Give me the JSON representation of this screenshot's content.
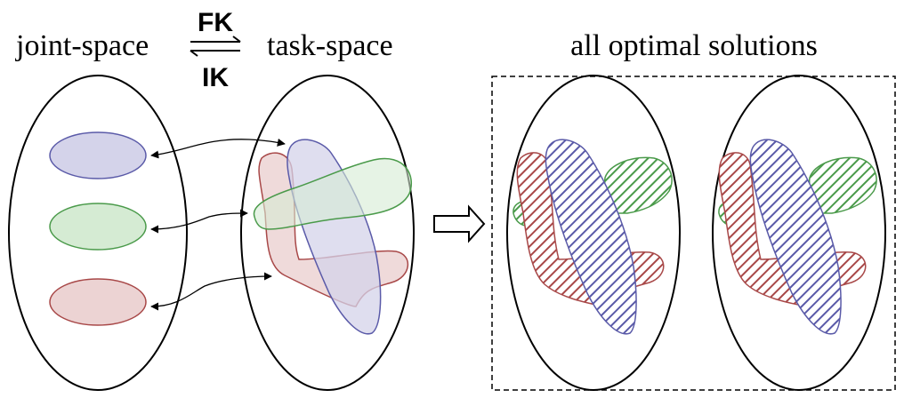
{
  "labels": {
    "joint_space": "joint-space",
    "fk": "FK",
    "ik": "IK",
    "task_space": "task-space",
    "all_optimal": "all optimal solutions"
  },
  "colors": {
    "blue_stroke": "#5a5aa8",
    "blue_fill": "#d4d3ea",
    "green_stroke": "#4a9a4a",
    "green_fill": "#d5ebd3",
    "red_stroke": "#a84848",
    "red_fill": "#ecd3d3"
  }
}
